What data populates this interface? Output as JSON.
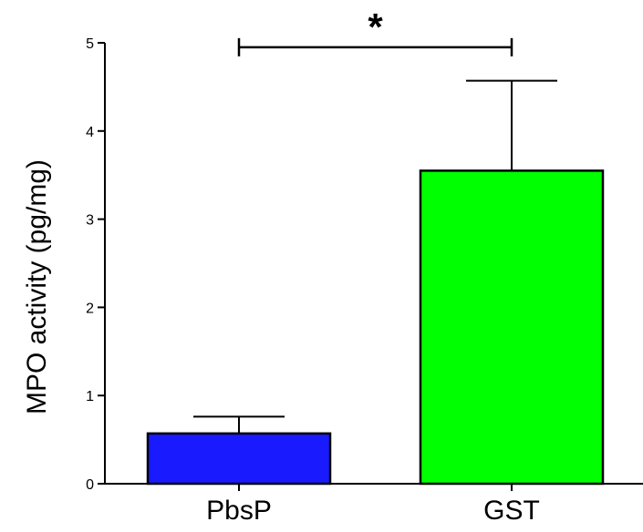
{
  "chart_data": {
    "type": "bar",
    "title": "",
    "xlabel": "",
    "ylabel": "MPO activity (pg/mg)",
    "categories": [
      "PbsP",
      "GST"
    ],
    "values": [
      0.57,
      3.55
    ],
    "error_bars": [
      0.19,
      1.02
    ],
    "bar_colors": [
      "#1a1aff",
      "#00ff00"
    ],
    "ylim": [
      0,
      5
    ],
    "yticks": [
      "0",
      "1",
      "2",
      "3",
      "4",
      "5"
    ],
    "grid": false,
    "annotations": [
      {
        "label": "*",
        "between": [
          "PbsP",
          "GST"
        ],
        "level": 4.95
      }
    ]
  }
}
